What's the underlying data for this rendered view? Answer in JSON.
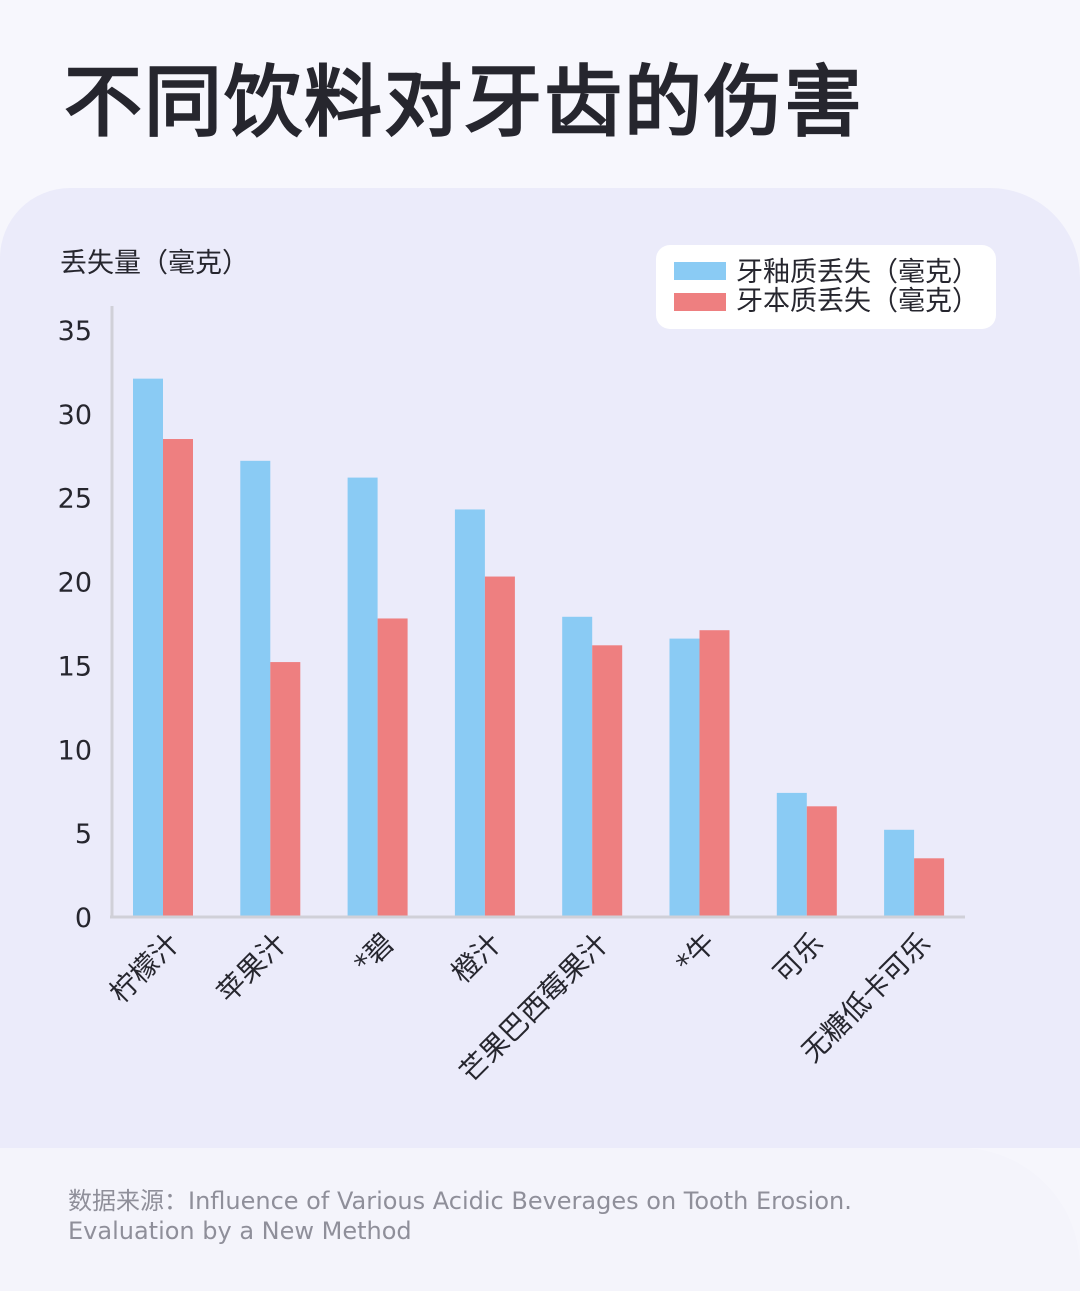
{
  "title": "不同饮料对牙齿的伤害",
  "source": "数据来源：Influence of Various Acidic Beverages on Tooth Erosion. Evaluation by a New Method",
  "colors": {
    "enamel": "#8acbf4",
    "dentin": "#ee7f80",
    "axis": "#d0d0d8",
    "text": "#26262e"
  },
  "chart_data": {
    "type": "bar",
    "ylabel": "丢失量（毫克）",
    "ylim": [
      0,
      35
    ],
    "yticks": [
      0,
      5,
      10,
      15,
      20,
      25,
      30,
      35
    ],
    "categories": [
      "柠檬汁",
      "苹果汁",
      "*碧",
      "橙汁",
      "芒果巴西莓果汁",
      "*牛",
      "可乐",
      "无糖低卡可乐"
    ],
    "series": [
      {
        "name": "牙釉质丢失（毫克）",
        "values": [
          32.1,
          27.2,
          26.2,
          24.3,
          17.9,
          16.6,
          7.4,
          5.2
        ]
      },
      {
        "name": "牙本质丢失（毫克）",
        "values": [
          28.5,
          15.2,
          17.8,
          20.3,
          16.2,
          17.1,
          6.6,
          3.5
        ]
      }
    ],
    "legend": "top-right",
    "grid": false
  }
}
